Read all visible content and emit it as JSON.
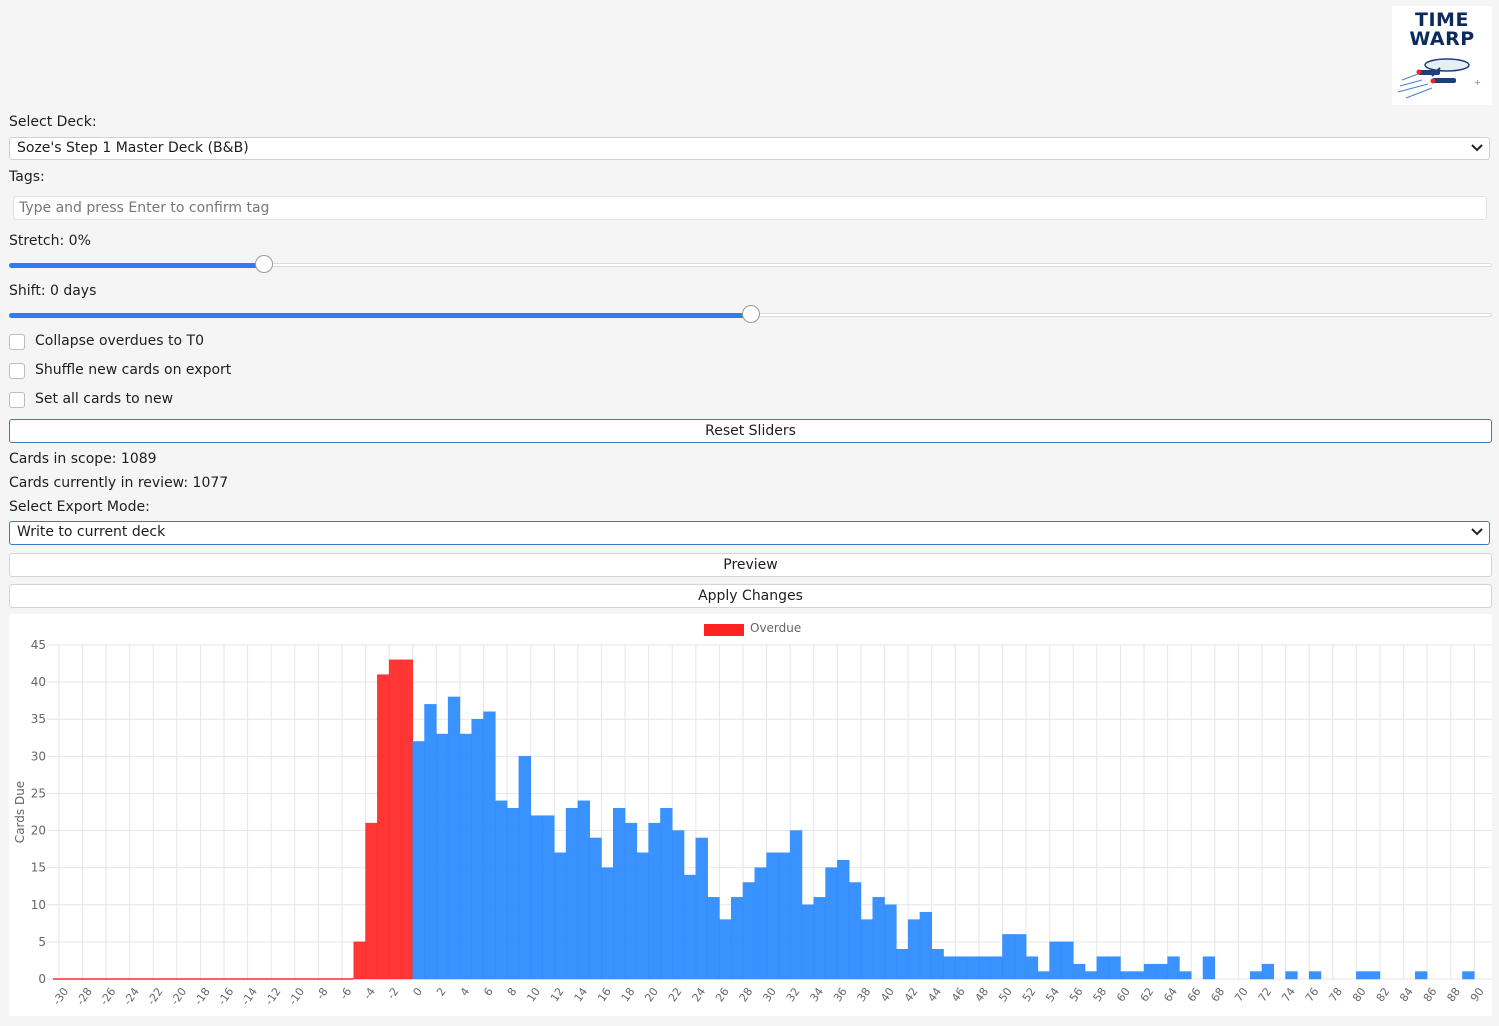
{
  "logo": {
    "line1": "TIME",
    "line2": "WARP"
  },
  "deck": {
    "label": "Select Deck:",
    "selected": "Soze's Step 1 Master Deck (B&B)"
  },
  "tags": {
    "label": "Tags:",
    "placeholder": "Type and press Enter to confirm tag"
  },
  "stretch": {
    "label": "Stretch: 0%",
    "fill_fraction": 0.172
  },
  "shift": {
    "label": "Shift: 0 days",
    "fill_fraction": 0.5
  },
  "options": {
    "collapse": "Collapse overdues to T0",
    "shuffle": "Shuffle new cards on export",
    "set_new": "Set all cards to new"
  },
  "reset_label": "Reset Sliders",
  "stats": {
    "in_scope": "Cards in scope: 1089",
    "in_review": "Cards currently in review: 1077"
  },
  "export": {
    "label": "Select Export Mode:",
    "selected": "Write to current deck"
  },
  "preview_label": "Preview",
  "apply_label": "Apply Changes",
  "colors": {
    "overdue": "#ff2b2b",
    "due": "#2f8cff",
    "accent": "#2f7bef"
  },
  "chart_data": {
    "type": "bar",
    "ylabel": "Cards Due",
    "ylim": [
      0,
      45
    ],
    "yticks": [
      0,
      5,
      10,
      15,
      20,
      25,
      30,
      35,
      40,
      45
    ],
    "x_start": -31,
    "x_end": 90,
    "legend": "Overdue",
    "legend_position": "top-center",
    "series": [
      {
        "name": "Overdue",
        "x": [
          -5,
          -4,
          -3,
          -2,
          -1
        ],
        "values": [
          5,
          21,
          41,
          43,
          43
        ]
      },
      {
        "x": [
          0,
          1,
          2,
          3,
          4,
          5,
          6,
          7,
          8,
          9,
          10,
          11,
          12,
          13,
          14,
          15,
          16,
          17,
          18,
          19,
          20,
          21,
          22,
          23,
          24,
          25,
          26,
          27,
          28,
          29,
          30,
          31,
          32,
          33,
          34,
          35,
          36,
          37,
          38,
          39,
          40,
          41,
          42,
          43,
          44,
          45,
          46,
          47,
          48,
          49,
          50,
          51,
          52,
          53,
          54,
          55,
          56,
          57,
          58,
          59,
          60,
          61,
          62,
          63,
          64,
          65,
          66,
          67,
          68,
          69,
          70,
          71,
          72,
          73,
          74,
          75,
          76,
          77,
          78,
          79,
          80,
          81,
          82,
          83,
          84,
          85,
          86,
          87,
          88,
          89
        ],
        "values": [
          32,
          37,
          33,
          38,
          33,
          35,
          36,
          24,
          23,
          30,
          22,
          22,
          17,
          23,
          24,
          19,
          15,
          23,
          21,
          17,
          21,
          23,
          20,
          14,
          19,
          11,
          8,
          11,
          13,
          15,
          17,
          17,
          20,
          10,
          11,
          15,
          16,
          13,
          8,
          11,
          10,
          4,
          8,
          9,
          4,
          3,
          3,
          3,
          3,
          3,
          6,
          6,
          3,
          1,
          5,
          5,
          2,
          1,
          3,
          3,
          1,
          1,
          2,
          2,
          3,
          1,
          0,
          3,
          0,
          0,
          0,
          1,
          2,
          0,
          1,
          0,
          1,
          0,
          0,
          0,
          1,
          1,
          0,
          0,
          0,
          1,
          0,
          0,
          0,
          1
        ]
      }
    ]
  }
}
